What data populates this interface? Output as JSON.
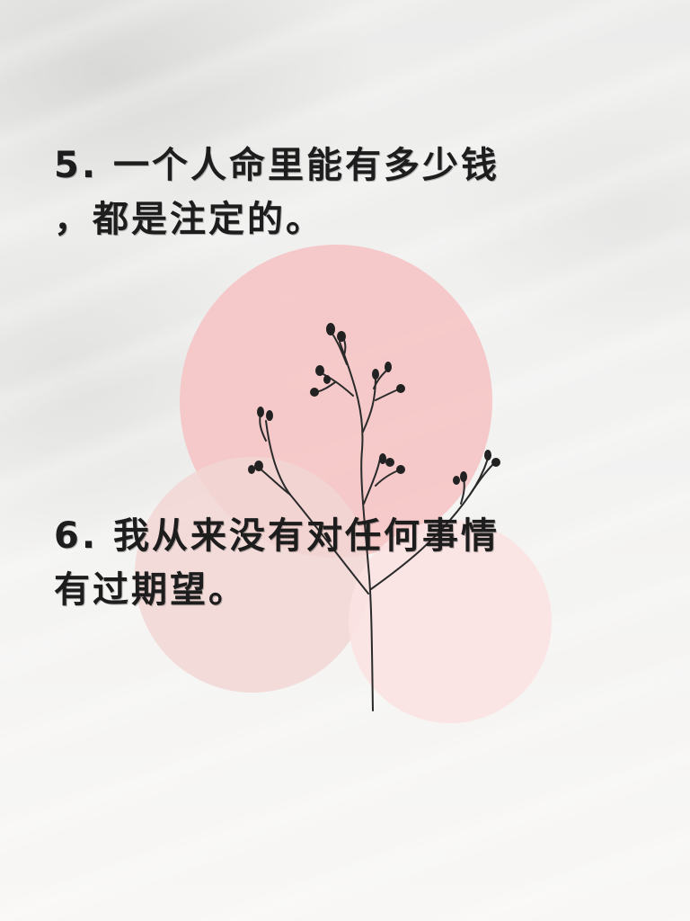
{
  "quotes": [
    {
      "line1": "5. 一个人命里能有多少钱",
      "line2": "，都是注定的。"
    },
    {
      "line1": "6. 我从来没有对任何事情",
      "line2": "有过期望。"
    }
  ],
  "colors": {
    "text": "#1d1d1d",
    "circle_top": "#f5c6c6",
    "circle_left": "#f1d6d4",
    "circle_right": "#fbe2e2",
    "background": "#f7f6f4"
  },
  "icons": {
    "plant": "branch-silhouette-icon"
  }
}
